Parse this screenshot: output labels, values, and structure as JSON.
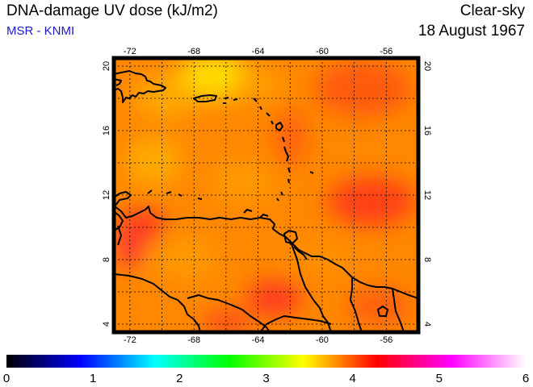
{
  "header": {
    "title": "DNA-damage UV dose (kJ/m2)",
    "subtitle": "MSR - KNMI",
    "sky": "Clear-sky",
    "date": "18 August 1967"
  },
  "map": {
    "lon_range": [
      -73,
      -54
    ],
    "lat_range": [
      3.5,
      20.5
    ],
    "lon_ticks": [
      "-72",
      "-68",
      "-64",
      "-60",
      "-56"
    ],
    "lat_ticks": [
      "4",
      "8",
      "12",
      "16",
      "20"
    ],
    "grid": true,
    "value_range_shown": [
      3.7,
      4.7
    ],
    "colors": {
      "low": "#ffee00",
      "mid": "#ff8800",
      "high": "#ff2a1a",
      "coast": "#000000",
      "frame": "#000000"
    }
  },
  "colorbar": {
    "min": 0,
    "max": 6,
    "labels": [
      "0",
      "1",
      "2",
      "3",
      "4",
      "5",
      "6"
    ],
    "stops": [
      "#000000",
      "#0000ff",
      "#00ffff",
      "#00ff00",
      "#ffff00",
      "#ff0000",
      "#ff00ff",
      "#ffffff"
    ]
  }
}
